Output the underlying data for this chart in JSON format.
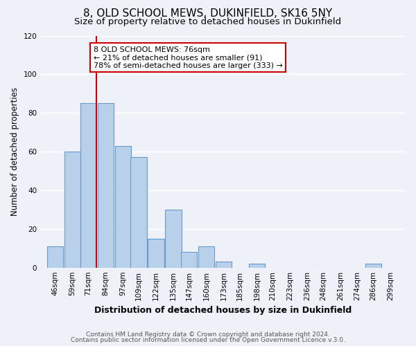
{
  "title": "8, OLD SCHOOL MEWS, DUKINFIELD, SK16 5NY",
  "subtitle": "Size of property relative to detached houses in Dukinfield",
  "xlabel": "Distribution of detached houses by size in Dukinfield",
  "ylabel": "Number of detached properties",
  "bar_labels": [
    "46sqm",
    "59sqm",
    "71sqm",
    "84sqm",
    "97sqm",
    "109sqm",
    "122sqm",
    "135sqm",
    "147sqm",
    "160sqm",
    "173sqm",
    "185sqm",
    "198sqm",
    "210sqm",
    "223sqm",
    "236sqm",
    "248sqm",
    "261sqm",
    "274sqm",
    "286sqm",
    "299sqm"
  ],
  "bar_values": [
    11,
    60,
    85,
    85,
    63,
    57,
    15,
    30,
    8,
    11,
    3,
    0,
    2,
    0,
    0,
    0,
    0,
    0,
    0,
    2,
    0
  ],
  "bar_color": "#b8d0ea",
  "bar_edge_color": "#6699cc",
  "ylim": [
    0,
    120
  ],
  "yticks": [
    0,
    20,
    40,
    60,
    80,
    100,
    120
  ],
  "annotation_title": "8 OLD SCHOOL MEWS: 76sqm",
  "annotation_line1": "← 21% of detached houses are smaller (91)",
  "annotation_line2": "78% of semi-detached houses are larger (333) →",
  "annotation_box_color": "#ffffff",
  "annotation_box_edge_color": "#cc0000",
  "redline_color": "#cc0000",
  "footer1": "Contains HM Land Registry data © Crown copyright and database right 2024.",
  "footer2": "Contains public sector information licensed under the Open Government Licence v.3.0.",
  "bg_color": "#eef2f8",
  "grid_color": "#ffffff",
  "title_fontsize": 11,
  "subtitle_fontsize": 9.5,
  "xlabel_fontsize": 9,
  "ylabel_fontsize": 8.5,
  "tick_fontsize": 7.5,
  "footer_fontsize": 6.5,
  "annotation_fontsize": 8
}
